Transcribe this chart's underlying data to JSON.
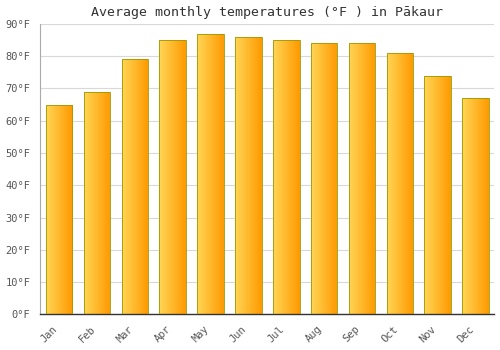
{
  "title": "Average monthly temperatures (°F ) in Pākaur",
  "months": [
    "Jan",
    "Feb",
    "Mar",
    "Apr",
    "May",
    "Jun",
    "Jul",
    "Aug",
    "Sep",
    "Oct",
    "Nov",
    "Dec"
  ],
  "values": [
    65,
    69,
    79,
    85,
    87,
    86,
    85,
    84,
    84,
    81,
    74,
    67
  ],
  "ylim": [
    0,
    90
  ],
  "yticks": [
    0,
    10,
    20,
    30,
    40,
    50,
    60,
    70,
    80,
    90
  ],
  "ytick_labels": [
    "0°F",
    "10°F",
    "20°F",
    "30°F",
    "40°F",
    "50°F",
    "60°F",
    "70°F",
    "80°F",
    "90°F"
  ],
  "background_color": "#ffffff",
  "grid_color": "#d8d8d8",
  "title_fontsize": 9.5,
  "tick_fontsize": 7.5,
  "bar_color_left": "#FFD060",
  "bar_color_right": "#FFA010",
  "bar_edge_color": "#888800",
  "bar_width": 0.7
}
